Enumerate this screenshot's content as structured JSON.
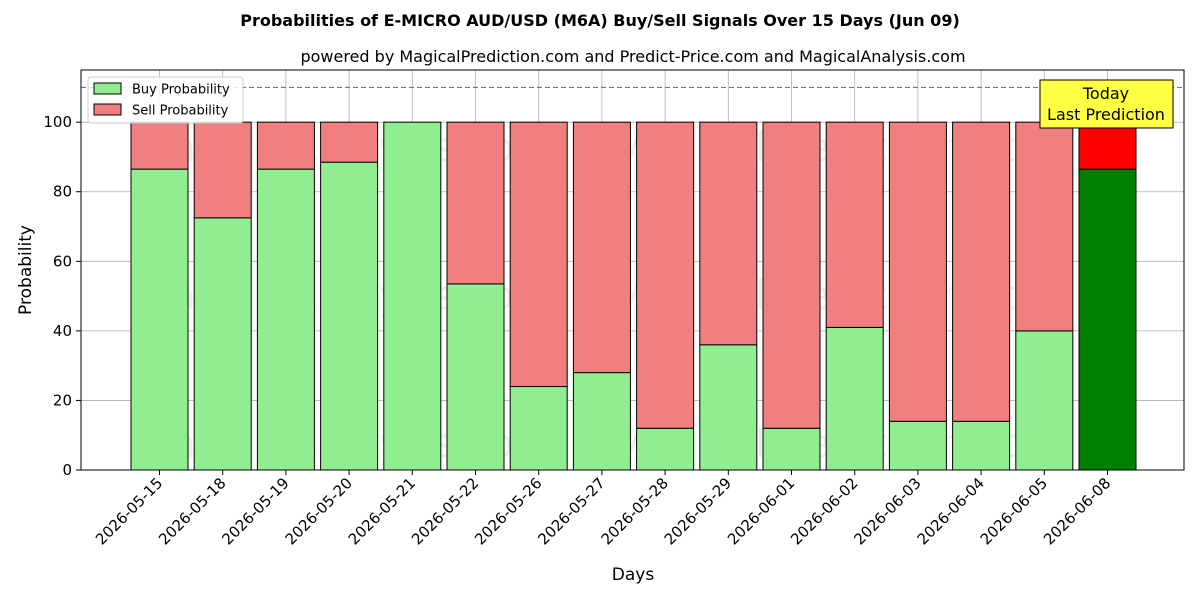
{
  "chart_data": {
    "type": "bar",
    "title": "Probabilities of E-MICRO AUD/USD (M6A) Buy/Sell Signals Over 15 Days (Jun 09)",
    "subtitle": "powered by MagicalPrediction.com and Predict-Price.com and MagicalAnalysis.com",
    "xlabel": "Days",
    "ylabel": "Probability",
    "ylim": [
      0,
      115
    ],
    "yticks": [
      0,
      20,
      40,
      60,
      80,
      100
    ],
    "categories": [
      "2026-05-15",
      "2026-05-18",
      "2026-05-19",
      "2026-05-20",
      "2026-05-21",
      "2026-05-22",
      "2026-05-26",
      "2026-05-27",
      "2026-05-28",
      "2026-05-29",
      "2026-06-01",
      "2026-06-02",
      "2026-06-03",
      "2026-06-04",
      "2026-06-05",
      "2026-06-08"
    ],
    "series": [
      {
        "name": "Buy Probability",
        "color": "#90EE90",
        "values": [
          86.5,
          72.5,
          86.5,
          88.5,
          100,
          53.5,
          24,
          28,
          12,
          36,
          12,
          41,
          14,
          14,
          40,
          86.5
        ]
      },
      {
        "name": "Sell Probability",
        "color": "#F08080",
        "values": [
          13.5,
          27.5,
          13.5,
          11.5,
          0,
          46.5,
          76,
          72,
          88,
          64,
          88,
          59,
          86,
          86,
          60,
          13.5
        ]
      }
    ],
    "highlight": {
      "index": 15,
      "buy_color": "#008000",
      "sell_color": "#FF0000"
    },
    "reference_line": {
      "y": 110,
      "style": "dashed"
    },
    "annotation": {
      "lines": [
        "Today",
        "Last Prediction"
      ],
      "background": "#FFFF44"
    },
    "legend_position": "top-left",
    "grid": true,
    "watermarks": [
      "MagicalAnalysis.com",
      "MagicalPrediction.com",
      "MagicalAnalysis.com",
      "MagicalPrediction.com",
      "MagicalAnalysis.com",
      "MagicalPrediction.com"
    ]
  }
}
